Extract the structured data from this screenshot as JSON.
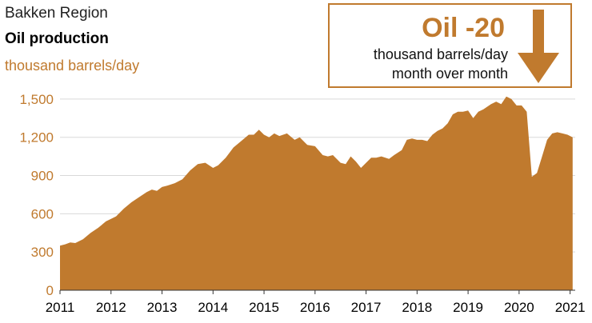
{
  "header": {
    "region": "Bakken Region",
    "title": "Oil production",
    "unit": "thousand barrels/day"
  },
  "callout": {
    "headline": "Oil -20",
    "line1": "thousand barrels/day",
    "line2": "month over month"
  },
  "colors": {
    "area": "#c07a2e",
    "callout_border": "#c07a2e",
    "arrow": "#c07a2e",
    "ytick": "#c07a2e",
    "xtick": "#000000"
  },
  "chart_data": {
    "type": "area",
    "title": "Oil production",
    "ylabel": "thousand barrels/day",
    "ylim": [
      0,
      1650
    ],
    "xlim": [
      2011,
      2021.1
    ],
    "yticks": [
      0,
      300,
      600,
      900,
      1200,
      1500
    ],
    "ytick_labels": [
      "0",
      "300",
      "600",
      "900",
      "1,200",
      "1,500"
    ],
    "xticks": [
      2011,
      2012,
      2013,
      2014,
      2015,
      2016,
      2017,
      2018,
      2019,
      2020,
      2021
    ],
    "xtick_labels": [
      "2011",
      "2012",
      "2013",
      "2014",
      "2015",
      "2016",
      "2017",
      "2018",
      "2019",
      "2020",
      "2021"
    ],
    "grid": true,
    "series": [
      {
        "x": [
          2011.0,
          2011.1,
          2011.2,
          2011.3,
          2011.45,
          2011.6,
          2011.75,
          2011.9,
          2012.0,
          2012.1,
          2012.25,
          2012.4,
          2012.55,
          2012.7,
          2012.8,
          2012.9,
          2013.0,
          2013.1,
          2013.25,
          2013.4,
          2013.55,
          2013.7,
          2013.85,
          2014.0,
          2014.1,
          2014.25,
          2014.4,
          2014.55,
          2014.7,
          2014.8,
          2014.9,
          2015.0,
          2015.1,
          2015.2,
          2015.3,
          2015.45,
          2015.6,
          2015.7,
          2015.85,
          2016.0,
          2016.15,
          2016.25,
          2016.35,
          2016.5,
          2016.6,
          2016.7,
          2016.8,
          2016.9,
          2017.0,
          2017.1,
          2017.2,
          2017.3,
          2017.45,
          2017.55,
          2017.7,
          2017.8,
          2017.9,
          2018.0,
          2018.1,
          2018.2,
          2018.3,
          2018.4,
          2018.5,
          2018.6,
          2018.7,
          2018.8,
          2018.9,
          2019.0,
          2019.1,
          2019.2,
          2019.3,
          2019.45,
          2019.55,
          2019.65,
          2019.75,
          2019.85,
          2019.95,
          2020.05,
          2020.15,
          2020.25,
          2020.35,
          2020.45,
          2020.55,
          2020.65,
          2020.75,
          2020.85,
          2020.95,
          2021.05
        ],
        "values": [
          350,
          360,
          375,
          370,
          400,
          450,
          490,
          540,
          560,
          580,
          640,
          690,
          730,
          770,
          790,
          780,
          810,
          820,
          840,
          870,
          940,
          990,
          1000,
          960,
          980,
          1040,
          1120,
          1170,
          1220,
          1220,
          1260,
          1220,
          1200,
          1230,
          1210,
          1230,
          1180,
          1200,
          1140,
          1130,
          1060,
          1050,
          1060,
          1000,
          990,
          1050,
          1010,
          960,
          1000,
          1040,
          1040,
          1050,
          1030,
          1060,
          1100,
          1180,
          1190,
          1180,
          1180,
          1170,
          1220,
          1250,
          1270,
          1310,
          1380,
          1400,
          1400,
          1410,
          1350,
          1400,
          1420,
          1460,
          1480,
          1460,
          1520,
          1500,
          1450,
          1450,
          1400,
          890,
          920,
          1050,
          1180,
          1230,
          1240,
          1230,
          1220,
          1200
        ]
      }
    ],
    "annotation": "Oil -20 thousand barrels/day month over month"
  }
}
